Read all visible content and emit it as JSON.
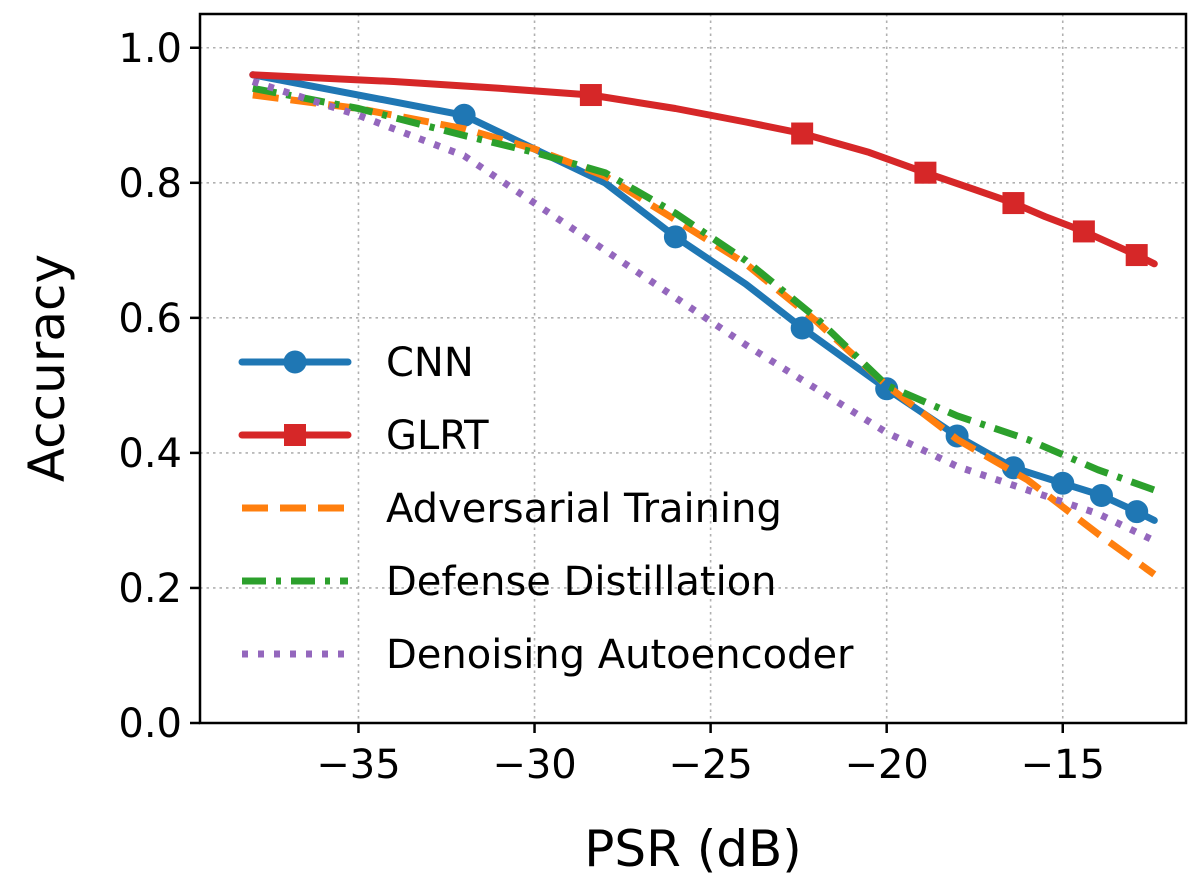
{
  "chart_data": {
    "type": "line",
    "title": "",
    "xlabel": "PSR (dB)",
    "ylabel": "Accuracy",
    "xlim": [
      -39.5,
      -11.5
    ],
    "ylim": [
      0.0,
      1.05
    ],
    "grid": true,
    "legend_position": "lower-left",
    "x_ticks": [
      -35,
      -30,
      -25,
      -20,
      -15
    ],
    "x_tick_labels": [
      "−35",
      "−30",
      "−25",
      "−20",
      "−15"
    ],
    "y_ticks": [
      0.0,
      0.2,
      0.4,
      0.6,
      0.8,
      1.0
    ],
    "y_tick_labels": [
      "0.0",
      "0.2",
      "0.4",
      "0.6",
      "0.8",
      "1.0"
    ],
    "series": [
      {
        "name": "CNN",
        "color": "#1f77b4",
        "style": "solid",
        "marker": "circle",
        "x": [
          -38.0,
          -32.0,
          -28.0,
          -26.0,
          -24.0,
          -22.4,
          -20.0,
          -18.0,
          -16.4,
          -15.0,
          -13.9,
          -12.9,
          -12.4
        ],
        "y": [
          0.96,
          0.9,
          0.8,
          0.72,
          0.65,
          0.585,
          0.495,
          0.425,
          0.378,
          0.355,
          0.337,
          0.313,
          0.3
        ],
        "markers_at": [
          -32.0,
          -26.0,
          -22.4,
          -20.0,
          -18.0,
          -16.4,
          -15.0,
          -13.9,
          -12.9
        ]
      },
      {
        "name": "GLRT",
        "color": "#d62728",
        "style": "solid",
        "marker": "square",
        "x": [
          -38.0,
          -34.0,
          -31.0,
          -28.4,
          -26.0,
          -24.0,
          -22.4,
          -20.5,
          -18.9,
          -17.5,
          -16.4,
          -15.5,
          -14.4,
          -12.9,
          -12.4
        ],
        "y": [
          0.96,
          0.95,
          0.94,
          0.93,
          0.91,
          0.89,
          0.873,
          0.845,
          0.815,
          0.79,
          0.77,
          0.75,
          0.728,
          0.693,
          0.68
        ],
        "markers_at": [
          -28.4,
          -22.4,
          -18.9,
          -16.4,
          -14.4,
          -12.9
        ]
      },
      {
        "name": "Adversarial Training",
        "color": "#ff7f0e",
        "style": "dashed",
        "marker": "none",
        "x": [
          -38.0,
          -35.0,
          -32.0,
          -30.0,
          -28.0,
          -26.0,
          -24.0,
          -22.0,
          -20.0,
          -18.0,
          -16.0,
          -14.0,
          -12.4
        ],
        "y": [
          0.93,
          0.91,
          0.88,
          0.85,
          0.81,
          0.745,
          0.68,
          0.595,
          0.5,
          0.42,
          0.36,
          0.28,
          0.22
        ]
      },
      {
        "name": "Defense Distillation",
        "color": "#2ca02c",
        "style": "dashdot",
        "marker": "none",
        "x": [
          -38.0,
          -35.0,
          -32.0,
          -30.0,
          -28.0,
          -26.0,
          -24.0,
          -22.0,
          -20.0,
          -18.0,
          -16.0,
          -14.0,
          -12.4
        ],
        "y": [
          0.94,
          0.91,
          0.87,
          0.845,
          0.815,
          0.755,
          0.685,
          0.6,
          0.5,
          0.455,
          0.42,
          0.375,
          0.345
        ]
      },
      {
        "name": "Denoising Autoencoder",
        "color": "#9467bd",
        "style": "dotted",
        "marker": "none",
        "x": [
          -38.0,
          -35.0,
          -32.0,
          -30.0,
          -28.0,
          -26.0,
          -24.0,
          -22.0,
          -20.0,
          -18.0,
          -16.0,
          -14.0,
          -12.4
        ],
        "y": [
          0.95,
          0.9,
          0.84,
          0.77,
          0.7,
          0.63,
          0.56,
          0.495,
          0.43,
          0.38,
          0.345,
          0.31,
          0.27
        ]
      }
    ]
  }
}
